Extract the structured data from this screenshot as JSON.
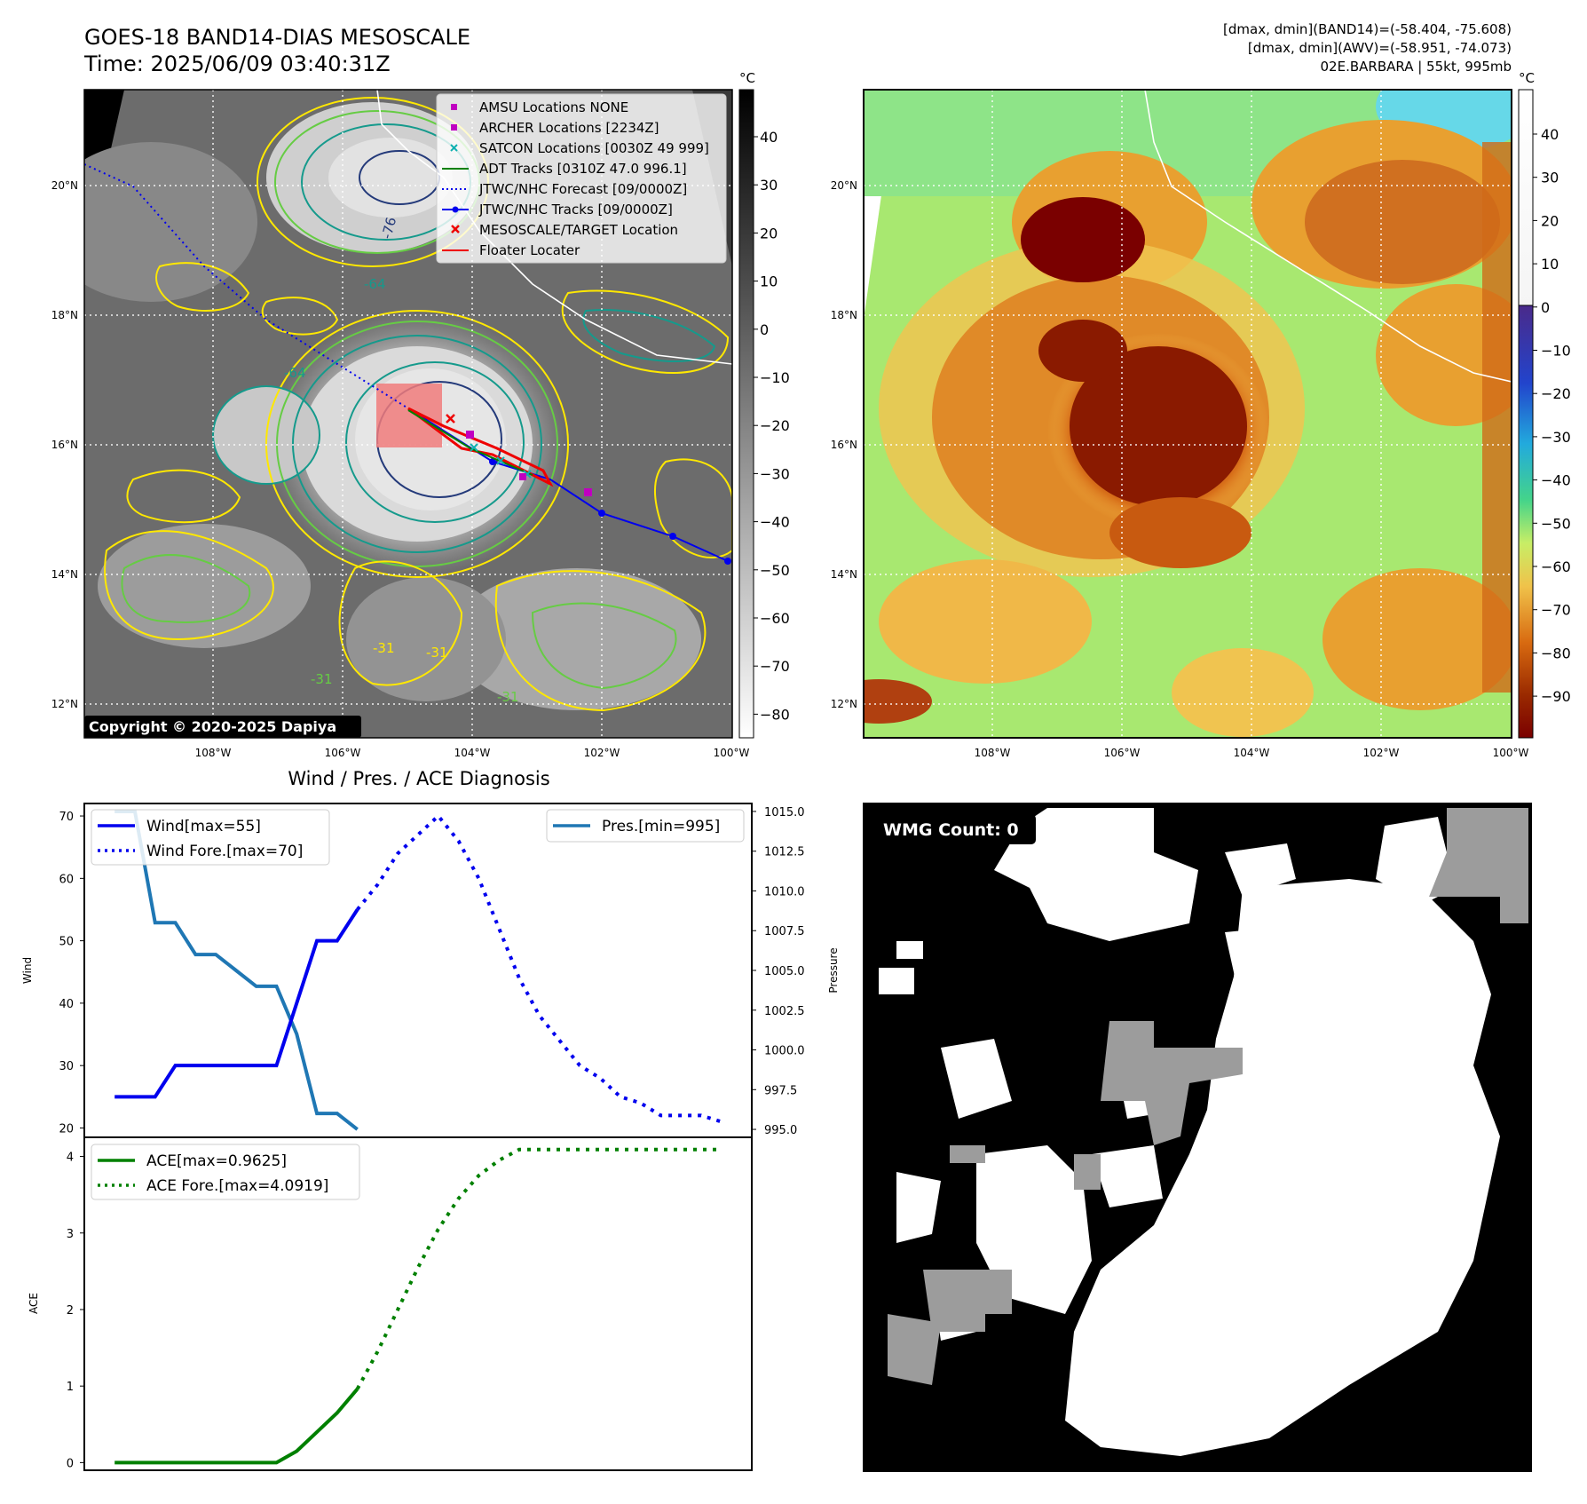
{
  "header": {
    "title_line1": "GOES-18 BAND14-DIAS MESOSCALE",
    "title_line2": "Time: 2025/06/09 03:40:31Z",
    "stats_line1": "[dmax, dmin](BAND14)=(-58.404, -75.608)",
    "stats_line2": "[dmax, dmin](AWV)=(-58.951, -74.073)",
    "stats_line3": "02E.BARBARA | 55kt, 995mb"
  },
  "maps": {
    "lat_labels": [
      "20°N",
      "18°N",
      "16°N",
      "14°N",
      "12°N"
    ],
    "lon_labels": [
      "108°W",
      "106°W",
      "104°W",
      "102°W",
      "100°W"
    ],
    "copyright": "Copyright © 2020-2025 Dapiya",
    "contour_labels": [
      "-76",
      "-64",
      "-64",
      "-31",
      "-31",
      "-31",
      "-31"
    ],
    "colorbar_unit": "°C",
    "left_colorbar_ticks": [
      "40",
      "30",
      "20",
      "10",
      "0",
      "−10",
      "−20",
      "−30",
      "−40",
      "−50",
      "−60",
      "−70",
      "−80"
    ],
    "right_colorbar_ticks": [
      "40",
      "30",
      "20",
      "10",
      "0",
      "−10",
      "−20",
      "−30",
      "−40",
      "−50",
      "−60",
      "−70",
      "−80",
      "−90"
    ],
    "colors": {
      "contour_yellow": "#ffe800",
      "contour_green": "#66cc44",
      "contour_teal": "#159a8c",
      "contour_navy": "#243a7a",
      "coast": "#ffffff",
      "track_blue": "#0000ee",
      "locator_red": "#ee0000",
      "target_box": "#f07b7b"
    }
  },
  "legend": {
    "items": [
      {
        "label": "AMSU Locations NONE",
        "icon": "square-marker-icon",
        "color": "#c000c0"
      },
      {
        "label": "ARCHER Locations [2234Z]",
        "icon": "square-marker-icon",
        "color": "#c000c0"
      },
      {
        "label": "SATCON Locations [0030Z 49 999]",
        "icon": "x-marker-icon",
        "color": "#10b0b0"
      },
      {
        "label": "ADT Tracks [0310Z 47.0 996.1]",
        "icon": "solid-line-icon",
        "color": "#008000"
      },
      {
        "label": "JTWC/NHC Forecast [09/0000Z]",
        "icon": "dotted-line-icon",
        "color": "#0000ee"
      },
      {
        "label": "JTWC/NHC Tracks [09/0000Z]",
        "icon": "line-dot-icon",
        "color": "#0000ee"
      },
      {
        "label": "MESOSCALE/TARGET Location",
        "icon": "x-marker-icon",
        "color": "#ee0000"
      },
      {
        "label": "Floater Locater",
        "icon": "solid-line-icon",
        "color": "#ee0000"
      }
    ]
  },
  "wmg": {
    "label": "WMG Count: 0"
  },
  "chart_data": [
    {
      "type": "line",
      "title": "Wind / Pres. / ACE Diagnosis",
      "ylabel": "Wind",
      "ylim": [
        18.5,
        72
      ],
      "y_ticks": [
        20,
        30,
        40,
        50,
        60,
        70
      ],
      "x": [
        0,
        1,
        2,
        3,
        4,
        5,
        6,
        7,
        8,
        9,
        10,
        11,
        12,
        13,
        14,
        15,
        16,
        17,
        18,
        19,
        20,
        21,
        22,
        23,
        24,
        25,
        26,
        27,
        28,
        29,
        30
      ],
      "series": [
        {
          "name": "Wind[max=55]",
          "style": "solid",
          "color": "#0000ee",
          "x": [
            0,
            1,
            2,
            3,
            4,
            5,
            6,
            7,
            8,
            9,
            10,
            11,
            12,
            13
          ],
          "values": [
            25,
            25,
            25,
            30,
            30,
            30,
            30,
            30,
            30,
            40,
            50,
            50,
            55,
            null
          ]
        },
        {
          "name": "Wind Fore.[max=70]",
          "style": "dotted",
          "color": "#0000ee",
          "x": [
            12,
            13,
            14,
            15,
            16,
            17,
            18,
            19,
            20,
            21,
            22,
            23,
            24,
            25,
            26,
            27,
            28,
            29,
            30
          ],
          "values": [
            55,
            59,
            64,
            67,
            70,
            66,
            60,
            52,
            44,
            38,
            34,
            30,
            28,
            25,
            24,
            22,
            22,
            22,
            21
          ]
        },
        {
          "name": "Pres.[min=995]",
          "axis": "right",
          "style": "solid",
          "color": "#1f77b4",
          "x": [
            0,
            1,
            2,
            3,
            4,
            5,
            6,
            7,
            8,
            9,
            10,
            11,
            12
          ],
          "values": [
            1015,
            1015,
            1008,
            1008,
            1006,
            1006,
            1005,
            1004,
            1004,
            1001,
            996,
            996,
            995
          ]
        }
      ],
      "y2label": "Pressure",
      "y2lim": [
        994.5,
        1015.5
      ],
      "y2_ticks": [
        "1015.0",
        "1012.5",
        "1010.0",
        "1007.5",
        "1005.0",
        "1002.5",
        "1000.0",
        "997.5",
        "995.0"
      ]
    },
    {
      "type": "line",
      "ylabel": "ACE",
      "ylim": [
        -0.1,
        4.25
      ],
      "y_ticks": [
        0,
        1,
        2,
        3,
        4
      ],
      "series": [
        {
          "name": "ACE[max=0.9625]",
          "style": "solid",
          "color": "#008000",
          "x": [
            0,
            1,
            2,
            3,
            4,
            5,
            6,
            7,
            8,
            9,
            10,
            11,
            12
          ],
          "values": [
            0,
            0,
            0,
            0,
            0,
            0,
            0,
            0,
            0,
            0.15,
            0.4,
            0.65,
            0.9625
          ]
        },
        {
          "name": "ACE Fore.[max=4.0919]",
          "style": "dotted",
          "color": "#008000",
          "x": [
            12,
            13,
            14,
            15,
            16,
            17,
            18,
            19,
            20,
            21,
            22,
            23,
            24,
            25,
            26,
            27,
            28,
            29,
            30
          ],
          "values": [
            0.9625,
            1.45,
            2.0,
            2.55,
            3.05,
            3.45,
            3.75,
            3.95,
            4.09,
            4.09,
            4.09,
            4.09,
            4.09,
            4.09,
            4.09,
            4.09,
            4.09,
            4.09,
            4.09
          ]
        }
      ]
    }
  ]
}
